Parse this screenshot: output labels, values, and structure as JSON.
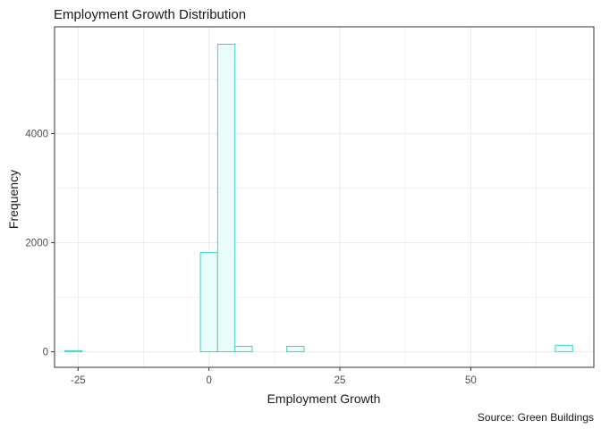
{
  "chart_data": {
    "type": "bar",
    "title": "Employment Growth Distribution",
    "xlabel": "Employment Growth",
    "ylabel": "Frequency",
    "caption": "Source: Green Buildings",
    "xlim": [
      -29.5,
      73.5
    ],
    "ylim": [
      -285,
      5960
    ],
    "x_ticks": [
      -25,
      0,
      25,
      50
    ],
    "y_ticks": [
      0,
      2000,
      4000
    ],
    "x_tick_labels": [
      "-25",
      "0",
      "25",
      "50"
    ],
    "y_tick_labels": [
      "0",
      "2000",
      "4000"
    ],
    "bin_width": 3.3,
    "bins": [
      {
        "x": -25.9,
        "count": 20
      },
      {
        "x": -22.6,
        "count": 0
      },
      {
        "x": -19.3,
        "count": 0
      },
      {
        "x": -16.0,
        "count": 0
      },
      {
        "x": -12.7,
        "count": 0
      },
      {
        "x": -9.4,
        "count": 0
      },
      {
        "x": -6.1,
        "count": 0
      },
      {
        "x": -2.8,
        "count": 0
      },
      {
        "x": 0.0,
        "count": 1820
      },
      {
        "x": 3.3,
        "count": 5640
      },
      {
        "x": 6.6,
        "count": 100
      },
      {
        "x": 9.9,
        "count": 0
      },
      {
        "x": 13.2,
        "count": 0
      },
      {
        "x": 16.5,
        "count": 100
      },
      {
        "x": 19.8,
        "count": 0
      },
      {
        "x": 23.1,
        "count": 0
      },
      {
        "x": 26.4,
        "count": 0
      },
      {
        "x": 29.7,
        "count": 0
      },
      {
        "x": 33.0,
        "count": 0
      },
      {
        "x": 36.3,
        "count": 0
      },
      {
        "x": 39.6,
        "count": 0
      },
      {
        "x": 42.9,
        "count": 0
      },
      {
        "x": 46.2,
        "count": 0
      },
      {
        "x": 49.5,
        "count": 0
      },
      {
        "x": 52.8,
        "count": 0
      },
      {
        "x": 56.1,
        "count": 0
      },
      {
        "x": 59.4,
        "count": 0
      },
      {
        "x": 62.7,
        "count": 0
      },
      {
        "x": 66.0,
        "count": 0
      },
      {
        "x": 67.8,
        "count": 120
      }
    ],
    "grid": true,
    "legend": "none",
    "bar_outline_color": "#37d6c9",
    "bar_fill_color": "#eafcfa",
    "grid_color": "#ebebeb",
    "panel_border_color": "#333333"
  }
}
